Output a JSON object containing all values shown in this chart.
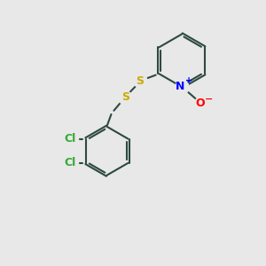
{
  "bg_color": "#e8e8e8",
  "bond_color": "#2d4a3e",
  "sulfur_color": "#ccaa00",
  "nitrogen_color": "#0000ff",
  "oxygen_color": "#ff0000",
  "chlorine_color": "#33aa33",
  "line_width": 1.5,
  "figsize": [
    3.0,
    3.0
  ],
  "dpi": 100,
  "xlim": [
    0,
    10
  ],
  "ylim": [
    0,
    10
  ]
}
